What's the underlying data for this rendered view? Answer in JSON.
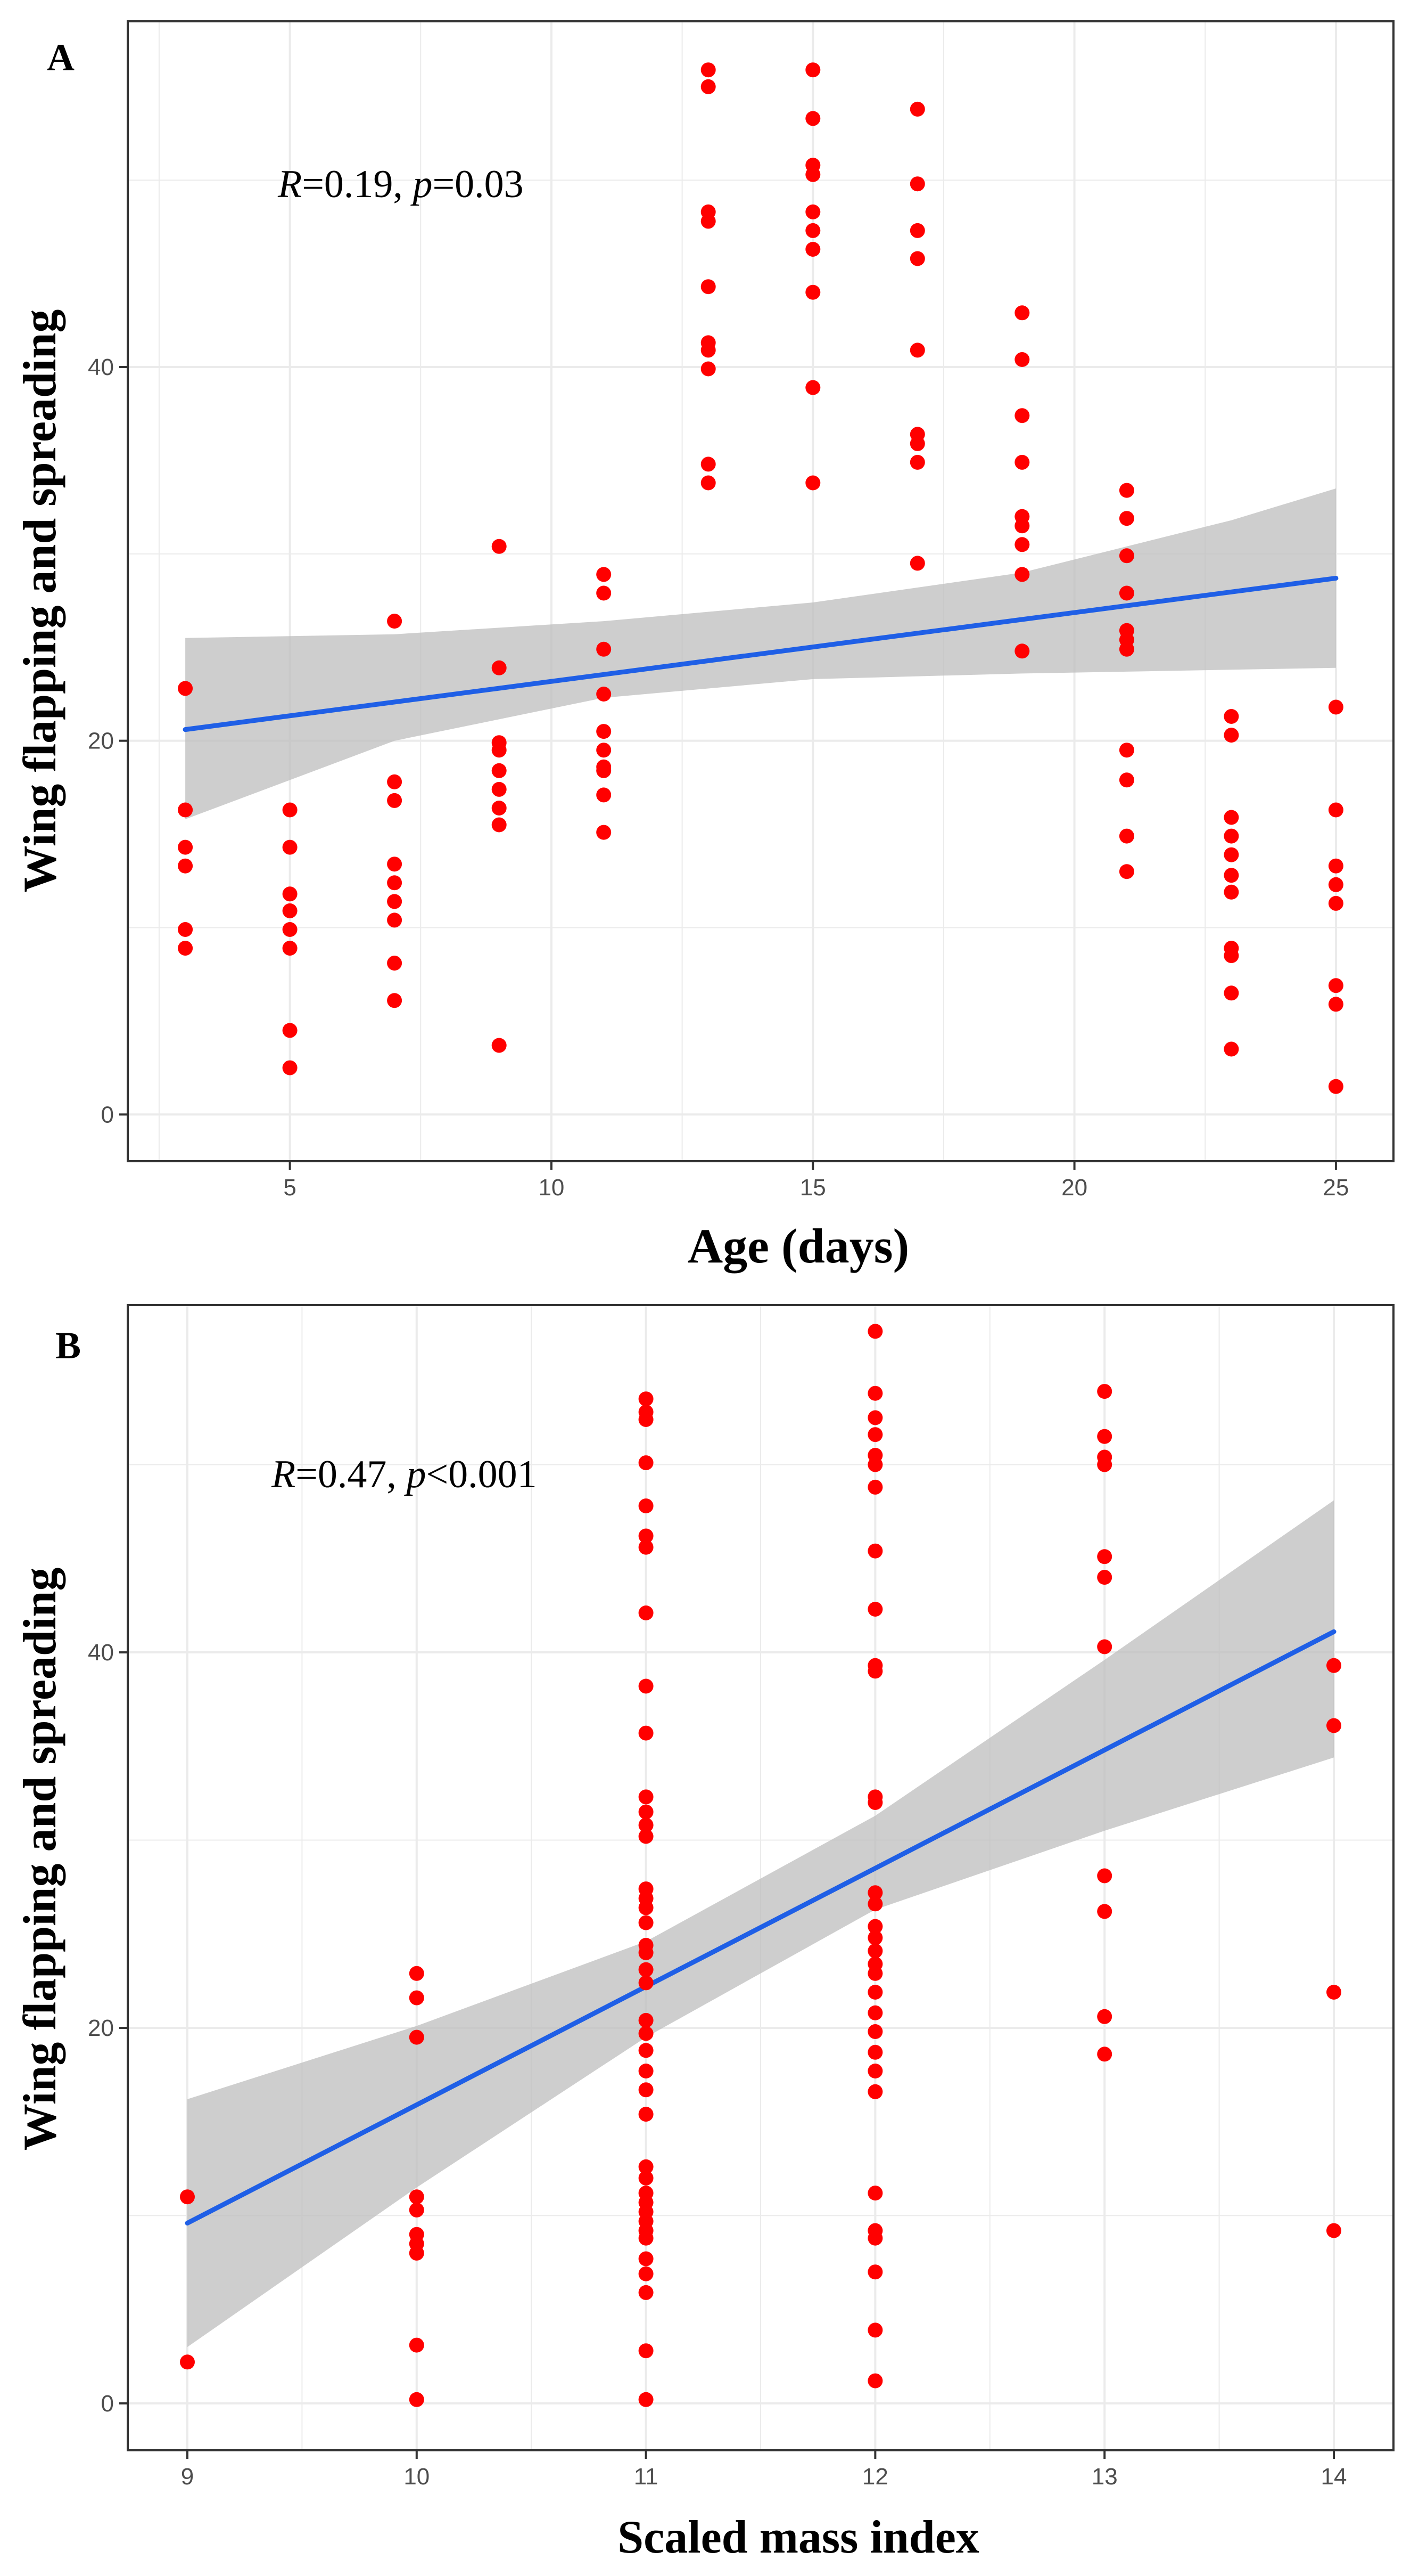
{
  "chart_data": [
    {
      "type": "scatter",
      "panel_label": "A",
      "xlabel": "Age (days)",
      "ylabel": "Wing flapping and spreading",
      "xlim": [
        1.9,
        26.1
      ],
      "ylim": [
        -2.5,
        58.5
      ],
      "xticks": [
        5,
        10,
        15,
        20,
        25
      ],
      "yticks": [
        0,
        20,
        40
      ],
      "grid": true,
      "annotation": {
        "r_label": "R",
        "r_value": "=0.19, ",
        "p_label": "p",
        "p_value": "=0.03"
      },
      "points": [
        [
          3,
          22.8
        ],
        [
          3,
          16.3
        ],
        [
          3,
          14.3
        ],
        [
          3,
          13.3
        ],
        [
          3,
          9.9
        ],
        [
          3,
          8.9
        ],
        [
          5,
          16.3
        ],
        [
          5,
          14.3
        ],
        [
          5,
          11.8
        ],
        [
          5,
          10.9
        ],
        [
          5,
          9.9
        ],
        [
          5,
          8.9
        ],
        [
          5,
          4.5
        ],
        [
          5,
          2.5
        ],
        [
          7,
          26.4
        ],
        [
          7,
          17.8
        ],
        [
          7,
          16.8
        ],
        [
          7,
          13.4
        ],
        [
          7,
          12.4
        ],
        [
          7,
          11.4
        ],
        [
          7,
          10.4
        ],
        [
          7,
          8.1
        ],
        [
          7,
          6.1
        ],
        [
          9,
          30.4
        ],
        [
          9,
          23.9
        ],
        [
          9,
          19.9
        ],
        [
          9,
          19.5
        ],
        [
          9,
          18.4
        ],
        [
          9,
          17.4
        ],
        [
          9,
          16.4
        ],
        [
          9,
          15.5
        ],
        [
          9,
          3.7
        ],
        [
          11,
          28.9
        ],
        [
          11,
          27.9
        ],
        [
          11,
          24.9
        ],
        [
          11,
          22.5
        ],
        [
          11,
          20.5
        ],
        [
          11,
          19.5
        ],
        [
          11,
          18.6
        ],
        [
          11,
          18.4
        ],
        [
          11,
          17.1
        ],
        [
          11,
          15.1
        ],
        [
          13,
          55.9
        ],
        [
          13,
          55.0
        ],
        [
          13,
          48.3
        ],
        [
          13,
          47.8
        ],
        [
          13,
          44.3
        ],
        [
          13,
          41.3
        ],
        [
          13,
          40.9
        ],
        [
          13,
          39.9
        ],
        [
          13,
          34.8
        ],
        [
          13,
          33.8
        ],
        [
          15,
          55.9
        ],
        [
          15,
          53.3
        ],
        [
          15,
          50.8
        ],
        [
          15,
          50.3
        ],
        [
          15,
          48.3
        ],
        [
          15,
          47.3
        ],
        [
          15,
          46.3
        ],
        [
          15,
          44.0
        ],
        [
          15,
          38.9
        ],
        [
          15,
          33.8
        ],
        [
          17,
          53.8
        ],
        [
          17,
          49.8
        ],
        [
          17,
          47.3
        ],
        [
          17,
          45.8
        ],
        [
          17,
          40.9
        ],
        [
          17,
          36.4
        ],
        [
          17,
          35.9
        ],
        [
          17,
          34.9
        ],
        [
          17,
          29.5
        ],
        [
          19,
          42.9
        ],
        [
          19,
          40.4
        ],
        [
          19,
          37.4
        ],
        [
          19,
          34.9
        ],
        [
          19,
          32.0
        ],
        [
          19,
          31.5
        ],
        [
          19,
          30.5
        ],
        [
          19,
          28.9
        ],
        [
          19,
          24.8
        ],
        [
          21,
          33.4
        ],
        [
          21,
          31.9
        ],
        [
          21,
          29.9
        ],
        [
          21,
          27.9
        ],
        [
          21,
          25.9
        ],
        [
          21,
          25.4
        ],
        [
          21,
          24.9
        ],
        [
          21,
          19.5
        ],
        [
          21,
          17.9
        ],
        [
          21,
          14.9
        ],
        [
          21,
          13.0
        ],
        [
          23,
          21.3
        ],
        [
          23,
          20.3
        ],
        [
          23,
          15.9
        ],
        [
          23,
          14.9
        ],
        [
          23,
          13.9
        ],
        [
          23,
          12.8
        ],
        [
          23,
          11.9
        ],
        [
          23,
          8.9
        ],
        [
          23,
          8.5
        ],
        [
          23,
          6.5
        ],
        [
          23,
          3.5
        ],
        [
          25,
          21.8
        ],
        [
          25,
          16.3
        ],
        [
          25,
          13.3
        ],
        [
          25,
          12.3
        ],
        [
          25,
          11.3
        ],
        [
          25,
          6.9
        ],
        [
          25,
          5.9
        ],
        [
          25,
          1.5
        ]
      ],
      "fit_line": {
        "x": [
          3,
          25
        ],
        "y": [
          20.6,
          28.7
        ]
      },
      "confidence_band": {
        "x": [
          3,
          7,
          11,
          15,
          19,
          23,
          25
        ],
        "lower": [
          15.8,
          20.0,
          22.3,
          23.3,
          23.6,
          23.8,
          23.9
        ],
        "upper": [
          25.5,
          25.7,
          26.4,
          27.4,
          29.0,
          31.8,
          33.5
        ]
      },
      "colors": {
        "points": "#ff0000",
        "line": "#1f5fe6",
        "band": "#bdbdbd",
        "grid": "#ebebeb",
        "border": "#333333"
      }
    },
    {
      "type": "scatter",
      "panel_label": "B",
      "xlabel": "Scaled mass index",
      "ylabel": "Wing flapping and spreading",
      "xlim": [
        8.74,
        14.26
      ],
      "ylim": [
        -2.5,
        58.5
      ],
      "xticks": [
        9,
        10,
        11,
        12,
        13,
        14
      ],
      "yticks": [
        0,
        20,
        40
      ],
      "grid": true,
      "annotation": {
        "r_label": "R",
        "r_value": "=0.47, ",
        "p_label": "p",
        "p_value": "<0.001"
      },
      "points": [
        [
          9,
          11.0
        ],
        [
          9,
          2.2
        ],
        [
          10,
          22.9
        ],
        [
          10,
          21.6
        ],
        [
          10,
          19.5
        ],
        [
          10,
          11.0
        ],
        [
          10,
          10.3
        ],
        [
          10,
          9.0
        ],
        [
          10,
          8.5
        ],
        [
          10,
          8.0
        ],
        [
          10,
          3.1
        ],
        [
          10,
          0.2
        ],
        [
          11,
          53.5
        ],
        [
          11,
          52.8
        ],
        [
          11,
          52.4
        ],
        [
          11,
          50.1
        ],
        [
          11,
          47.8
        ],
        [
          11,
          46.2
        ],
        [
          11,
          45.6
        ],
        [
          11,
          42.1
        ],
        [
          11,
          38.2
        ],
        [
          11,
          35.7
        ],
        [
          11,
          32.3
        ],
        [
          11,
          31.5
        ],
        [
          11,
          30.8
        ],
        [
          11,
          30.2
        ],
        [
          11,
          27.4
        ],
        [
          11,
          26.9
        ],
        [
          11,
          26.4
        ],
        [
          11,
          25.6
        ],
        [
          11,
          24.4
        ],
        [
          11,
          24.0
        ],
        [
          11,
          23.1
        ],
        [
          11,
          22.4
        ],
        [
          11,
          20.4
        ],
        [
          11,
          19.7
        ],
        [
          11,
          18.8
        ],
        [
          11,
          17.7
        ],
        [
          11,
          16.7
        ],
        [
          11,
          15.4
        ],
        [
          11,
          12.6
        ],
        [
          11,
          12.0
        ],
        [
          11,
          11.2
        ],
        [
          11,
          10.7
        ],
        [
          11,
          10.2
        ],
        [
          11,
          9.7
        ],
        [
          11,
          9.2
        ],
        [
          11,
          8.8
        ],
        [
          11,
          7.7
        ],
        [
          11,
          6.9
        ],
        [
          11,
          5.9
        ],
        [
          11,
          2.8
        ],
        [
          11,
          0.2
        ],
        [
          12,
          57.1
        ],
        [
          12,
          53.8
        ],
        [
          12,
          52.5
        ],
        [
          12,
          51.6
        ],
        [
          12,
          50.5
        ],
        [
          12,
          50.0
        ],
        [
          12,
          48.8
        ],
        [
          12,
          45.4
        ],
        [
          12,
          42.3
        ],
        [
          12,
          39.3
        ],
        [
          12,
          39.0
        ],
        [
          12,
          32.3
        ],
        [
          12,
          32.0
        ],
        [
          12,
          27.2
        ],
        [
          12,
          26.6
        ],
        [
          12,
          25.4
        ],
        [
          12,
          24.8
        ],
        [
          12,
          24.1
        ],
        [
          12,
          23.4
        ],
        [
          12,
          22.9
        ],
        [
          12,
          21.9
        ],
        [
          12,
          20.8
        ],
        [
          12,
          19.8
        ],
        [
          12,
          18.7
        ],
        [
          12,
          17.7
        ],
        [
          12,
          16.6
        ],
        [
          12,
          11.2
        ],
        [
          12,
          9.2
        ],
        [
          12,
          8.8
        ],
        [
          12,
          7.0
        ],
        [
          12,
          3.9
        ],
        [
          12,
          1.2
        ],
        [
          13,
          53.9
        ],
        [
          13,
          51.5
        ],
        [
          13,
          50.4
        ],
        [
          13,
          50.0
        ],
        [
          13,
          45.1
        ],
        [
          13,
          44.0
        ],
        [
          13,
          40.3
        ],
        [
          13,
          28.1
        ],
        [
          13,
          26.2
        ],
        [
          13,
          20.6
        ],
        [
          13,
          18.6
        ],
        [
          14,
          39.3
        ],
        [
          14,
          36.1
        ],
        [
          14,
          21.9
        ],
        [
          14,
          9.2
        ]
      ],
      "fit_line": {
        "x": [
          9,
          14
        ],
        "y": [
          9.6,
          41.1
        ]
      },
      "confidence_band": {
        "x": [
          9,
          10,
          11,
          12,
          13,
          14
        ],
        "lower": [
          3.0,
          11.5,
          19.5,
          26.3,
          30.5,
          34.4
        ],
        "upper": [
          16.2,
          20.1,
          24.6,
          31.3,
          39.6,
          48.1
        ]
      },
      "colors": {
        "points": "#ff0000",
        "line": "#1f5fe6",
        "band": "#bdbdbd",
        "grid": "#ebebeb",
        "border": "#333333"
      }
    }
  ]
}
